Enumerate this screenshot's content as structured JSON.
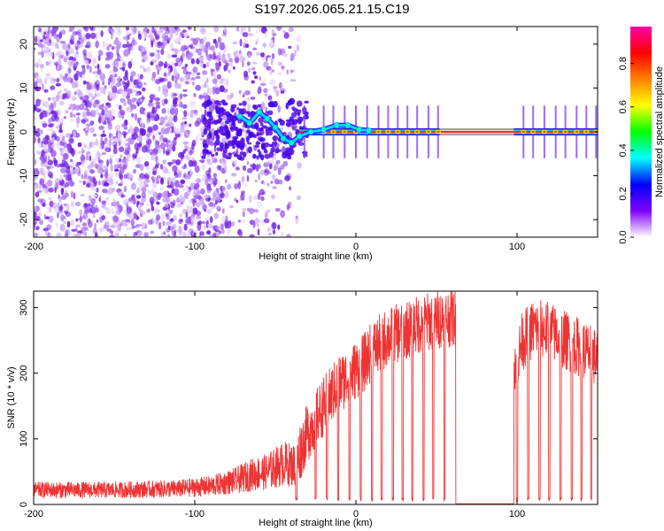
{
  "title": "S197.2026.065.21.15.C19",
  "chart_data": [
    {
      "type": "heatmap",
      "name": "spectrogram",
      "xlabel": "Height of straight line (km)",
      "ylabel": "Frequency (Hz)",
      "xlim": [
        -200,
        150
      ],
      "ylim": [
        -24,
        24
      ],
      "xticks": [
        -200,
        -100,
        0,
        100
      ],
      "xtick_labels": [
        "-200",
        "-100",
        "0",
        "100"
      ],
      "yticks": [
        -20,
        -10,
        0,
        10,
        20
      ],
      "ytick_labels": [
        "-20",
        "-10",
        "0",
        "10",
        "20"
      ],
      "colorbar": {
        "label": "Normalized spectral amplitude",
        "range": [
          0,
          0.97
        ],
        "ticks": [
          0.0,
          0.2,
          0.4,
          0.6,
          0.8
        ],
        "tick_labels": [
          "0.0",
          "0.2",
          "0.4",
          "0.6",
          "0.8"
        ],
        "colors": [
          "#ffffff",
          "#8000ff",
          "#0000ff",
          "#00ffff",
          "#00ff00",
          "#ffff00",
          "#ff8000",
          "#ff0000",
          "#ff00aa"
        ]
      },
      "carrier_line": {
        "frequency": 0,
        "x_start": -35,
        "x_end": 150
      },
      "carrier_gap": [
        52,
        98
      ],
      "ridge_points": [
        {
          "x": -72,
          "y": 3.5
        },
        {
          "x": -66,
          "y": 2.0
        },
        {
          "x": -60,
          "y": 4.5
        },
        {
          "x": -55,
          "y": 3.0
        },
        {
          "x": -50,
          "y": 1.0
        },
        {
          "x": -45,
          "y": -1.5
        },
        {
          "x": -40,
          "y": -2.5
        },
        {
          "x": -35,
          "y": -1.0
        },
        {
          "x": -28,
          "y": 0.0
        },
        {
          "x": -20,
          "y": 0.5
        },
        {
          "x": -12,
          "y": 1.5
        },
        {
          "x": -5,
          "y": 1.5
        },
        {
          "x": 2,
          "y": 0.5
        },
        {
          "x": 8,
          "y": 0.3
        }
      ],
      "pulse_positions": [
        -32,
        -20,
        -14,
        -7,
        0,
        7,
        14,
        20,
        26,
        32,
        38,
        45,
        51,
        104,
        110,
        117,
        124,
        130,
        137,
        143,
        149
      ]
    },
    {
      "type": "line",
      "name": "snr",
      "xlabel": "Height of straight line (km)",
      "ylabel": "SNR (10 * v/v)",
      "xlim": [
        -200,
        150
      ],
      "ylim": [
        0,
        325
      ],
      "xticks": [
        -200,
        -100,
        0,
        100
      ],
      "xtick_labels": [
        "-200",
        "-100",
        "0",
        "100"
      ],
      "yticks": [
        0,
        100,
        200,
        300
      ],
      "ytick_labels": [
        "0",
        "100",
        "200",
        "300"
      ],
      "color": "#ee3333",
      "envelope": [
        {
          "x": -200,
          "y": 22
        },
        {
          "x": -150,
          "y": 22
        },
        {
          "x": -110,
          "y": 24
        },
        {
          "x": -90,
          "y": 28
        },
        {
          "x": -75,
          "y": 36
        },
        {
          "x": -65,
          "y": 45
        },
        {
          "x": -55,
          "y": 50
        },
        {
          "x": -45,
          "y": 62
        },
        {
          "x": -38,
          "y": 60
        },
        {
          "x": -30,
          "y": 110
        },
        {
          "x": -20,
          "y": 150
        },
        {
          "x": -10,
          "y": 185
        },
        {
          "x": 0,
          "y": 205
        },
        {
          "x": 5,
          "y": 215
        },
        {
          "x": 10,
          "y": 235
        },
        {
          "x": 20,
          "y": 255
        },
        {
          "x": 30,
          "y": 265
        },
        {
          "x": 40,
          "y": 275
        },
        {
          "x": 50,
          "y": 282
        },
        {
          "x": 60,
          "y": 285
        },
        {
          "x": 70,
          "y": 288
        },
        {
          "x": 80,
          "y": 285
        },
        {
          "x": 88,
          "y": 275
        },
        {
          "x": 92,
          "y": 262
        },
        {
          "x": 94,
          "y": 248
        },
        {
          "x": 96,
          "y": 222
        },
        {
          "x": 100,
          "y": 218
        },
        {
          "x": 103,
          "y": 248
        },
        {
          "x": 110,
          "y": 268
        },
        {
          "x": 120,
          "y": 265
        },
        {
          "x": 130,
          "y": 250
        },
        {
          "x": 140,
          "y": 238
        },
        {
          "x": 150,
          "y": 222
        }
      ],
      "dropouts": [
        -37,
        -25,
        -18,
        -11,
        -4,
        3,
        10,
        16,
        23,
        29,
        35,
        42,
        48,
        55,
        100,
        107,
        114,
        120,
        127,
        134,
        140,
        146
      ],
      "zero_gap": [
        62,
        98
      ]
    }
  ]
}
